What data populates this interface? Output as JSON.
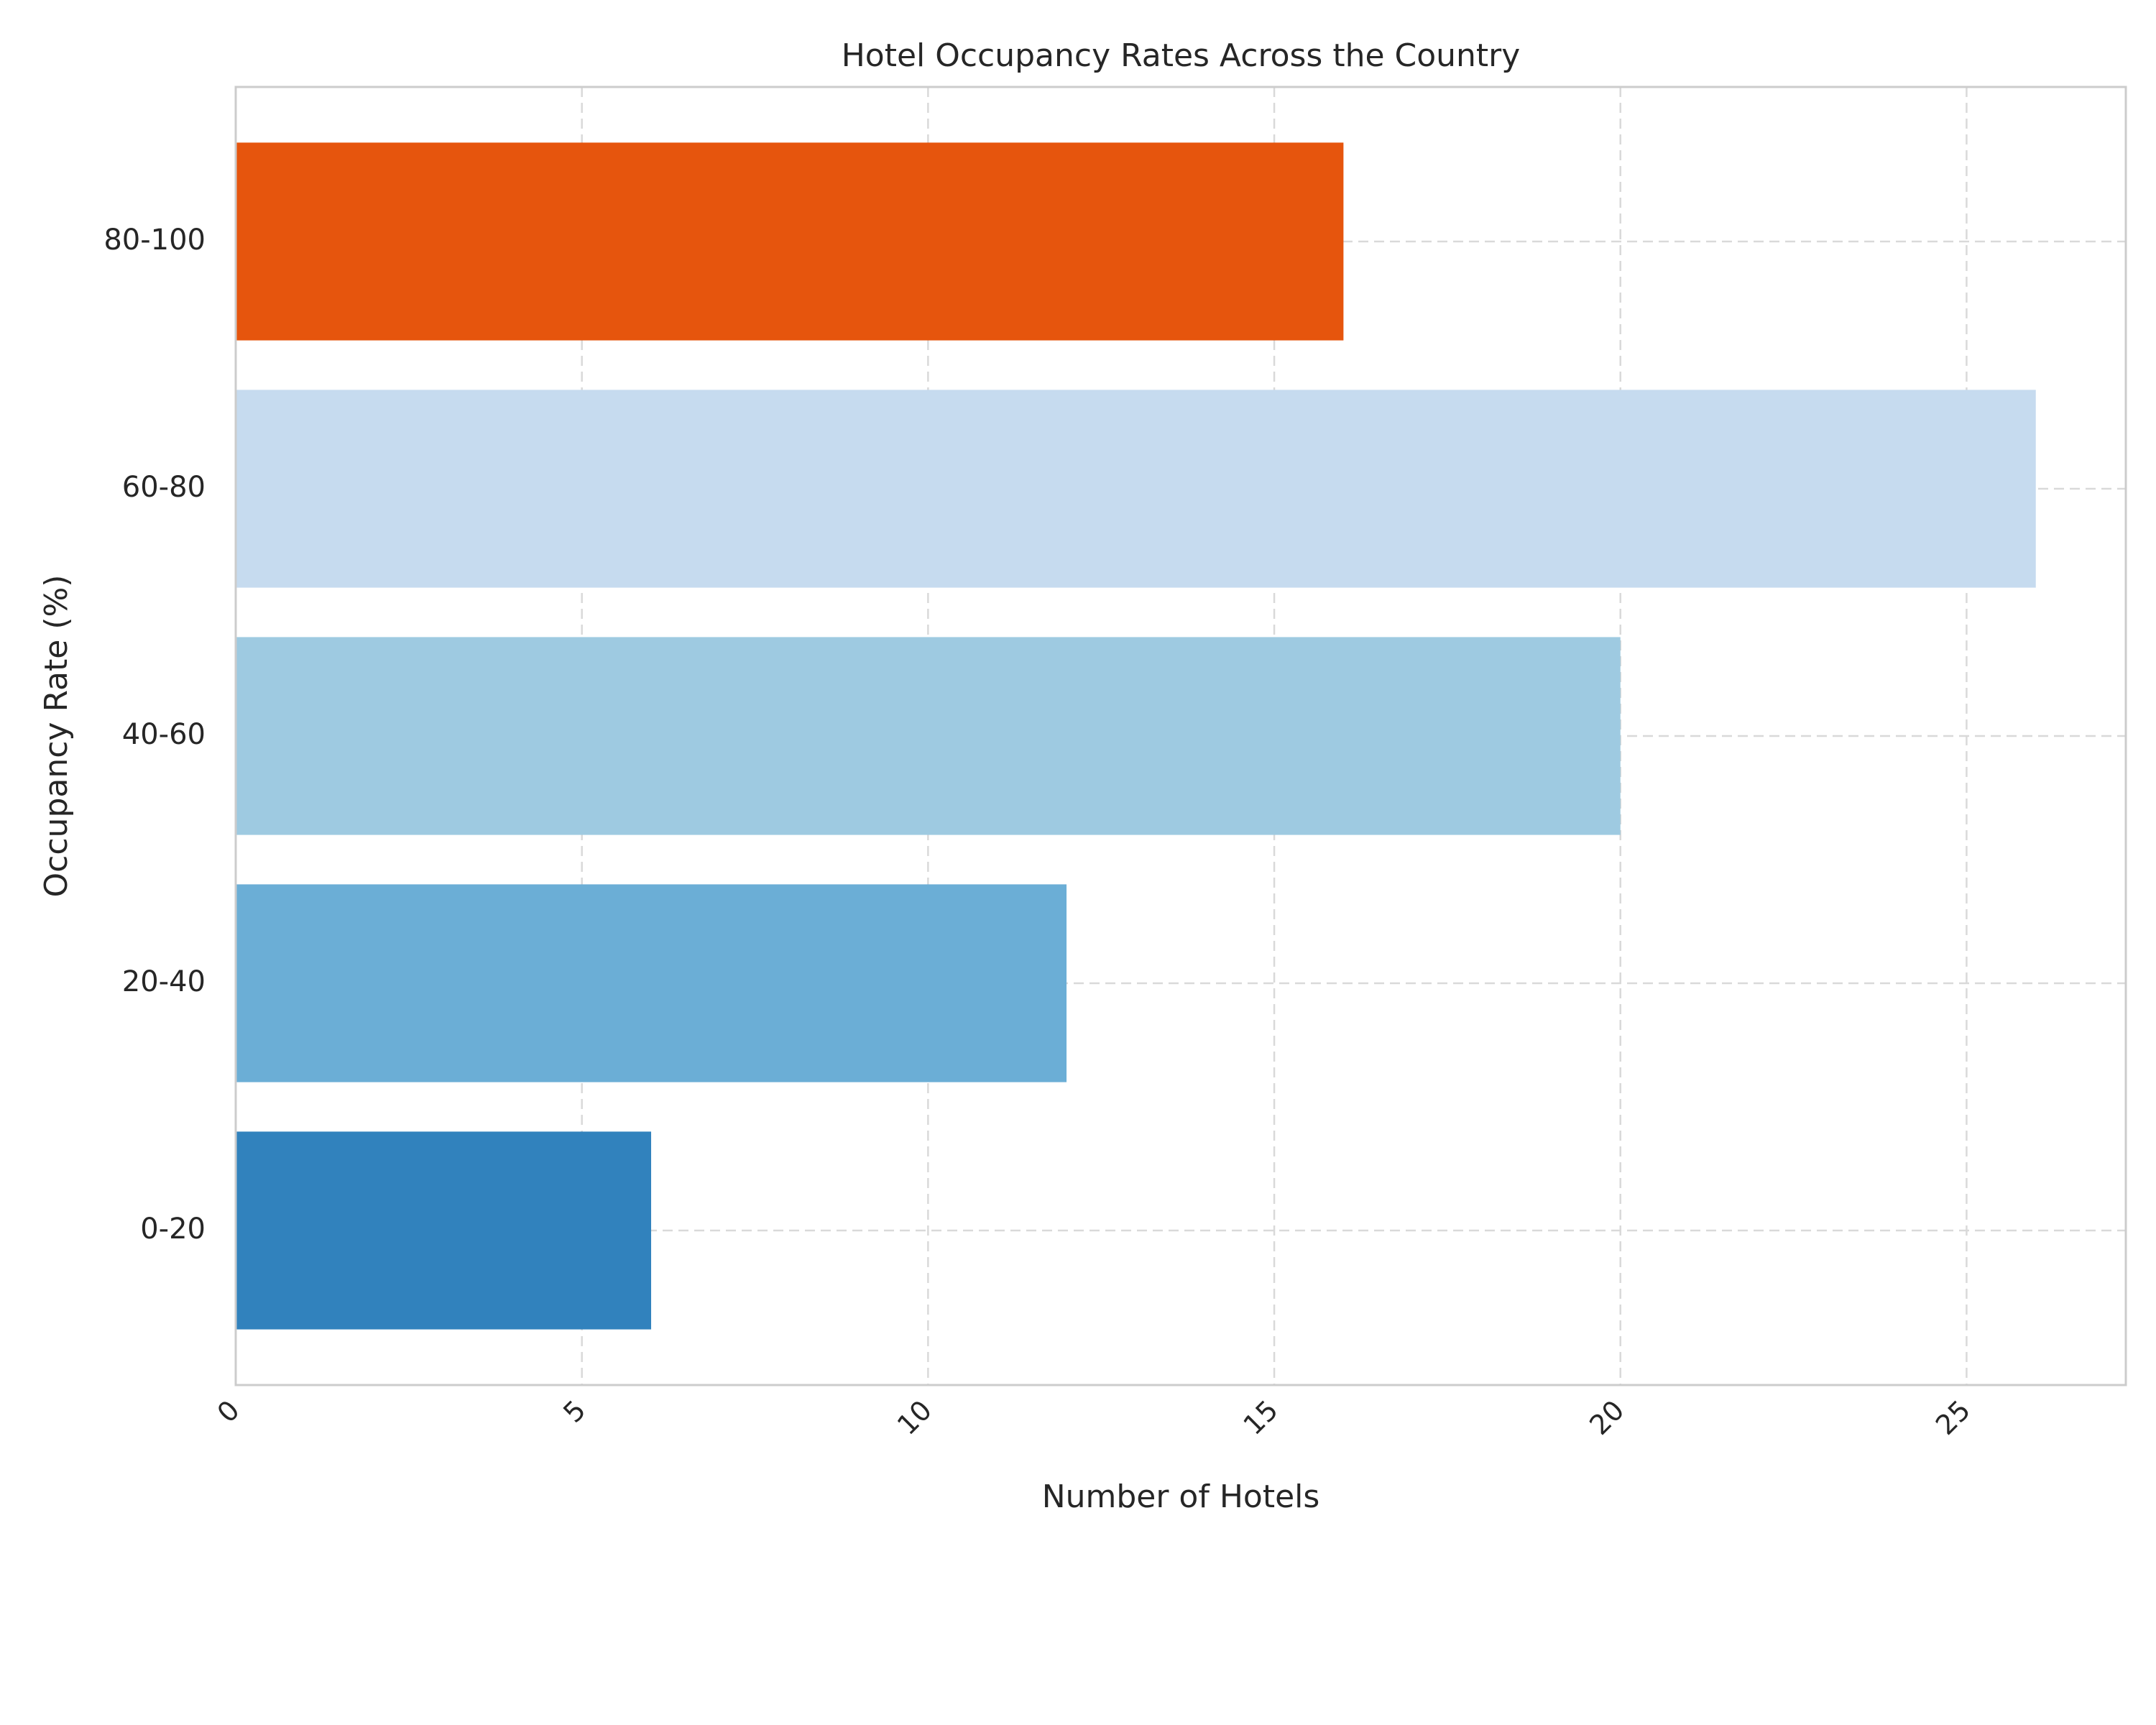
{
  "chart_data": {
    "type": "bar",
    "orientation": "horizontal",
    "title": "Hotel Occupancy Rates Across the Country",
    "xlabel": "Number of Hotels",
    "ylabel": "Occupancy Rate (%)",
    "categories": [
      "0-20",
      "20-40",
      "40-60",
      "60-80",
      "80-100"
    ],
    "values": [
      6,
      12,
      20,
      26,
      16
    ],
    "colors": [
      "#3182bd",
      "#6baed6",
      "#9ecae1",
      "#c6dbef",
      "#e6550d"
    ],
    "xlim": [
      0,
      27.3
    ],
    "xticks": [
      "0",
      "5",
      "10",
      "15",
      "20",
      "25"
    ],
    "xtick_values": [
      0,
      5,
      10,
      15,
      20,
      25
    ],
    "grid": true,
    "legend": "none"
  }
}
